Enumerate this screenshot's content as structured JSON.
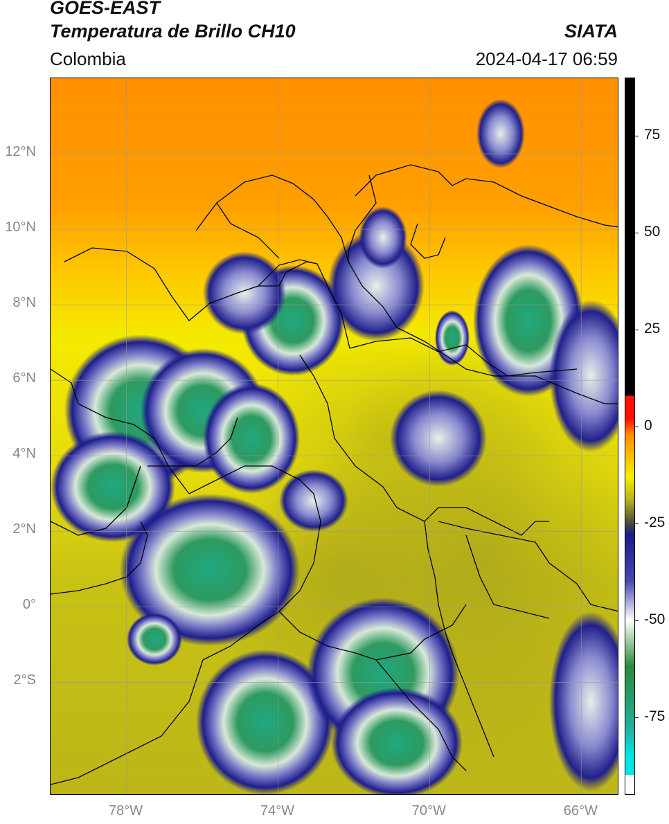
{
  "header": {
    "satellite": "GOES-EAST",
    "product": "Temperatura de Brillo CH10",
    "region": "Colombia",
    "source": "SIATA",
    "timestamp": "2024-04-17 06:59"
  },
  "map": {
    "lon_range": [
      -80,
      -65
    ],
    "lat_range": [
      -5,
      14
    ],
    "lat_ticks": [
      {
        "value": 12,
        "label": "12°N"
      },
      {
        "value": 10,
        "label": "10°N"
      },
      {
        "value": 8,
        "label": "8°N"
      },
      {
        "value": 6,
        "label": "6°N"
      },
      {
        "value": 4,
        "label": "4°N"
      },
      {
        "value": 2,
        "label": "2°N"
      },
      {
        "value": 0,
        "label": "0°"
      },
      {
        "value": -2,
        "label": "2°S"
      }
    ],
    "lon_ticks": [
      {
        "value": -78,
        "label": "78°W"
      },
      {
        "value": -74,
        "label": "74°W"
      },
      {
        "value": -70,
        "label": "70°W"
      },
      {
        "value": -66,
        "label": "66°W"
      }
    ],
    "gridlines": true
  },
  "colorbar": {
    "range": [
      -95,
      90
    ],
    "ticks": [
      {
        "value": 75,
        "label": "75"
      },
      {
        "value": 50,
        "label": "50"
      },
      {
        "value": 25,
        "label": "25"
      },
      {
        "value": 0,
        "label": "0"
      },
      {
        "value": -25,
        "label": "-25"
      },
      {
        "value": -50,
        "label": "-50"
      },
      {
        "value": -75,
        "label": "-75"
      }
    ],
    "colors": {
      "warmest": "#000000",
      "red": "#ff1000",
      "orange": "#ff8a00",
      "yellow": "#f6f000",
      "olive": "#b5b21c",
      "dark_gray": "#4a4a3a",
      "navy": "#1a1a8a",
      "blue": "#4a4ab0",
      "white": "#ffffff",
      "green": "#2a8a3a",
      "teal": "#20b0a0",
      "cyan": "#00e5e5"
    }
  }
}
